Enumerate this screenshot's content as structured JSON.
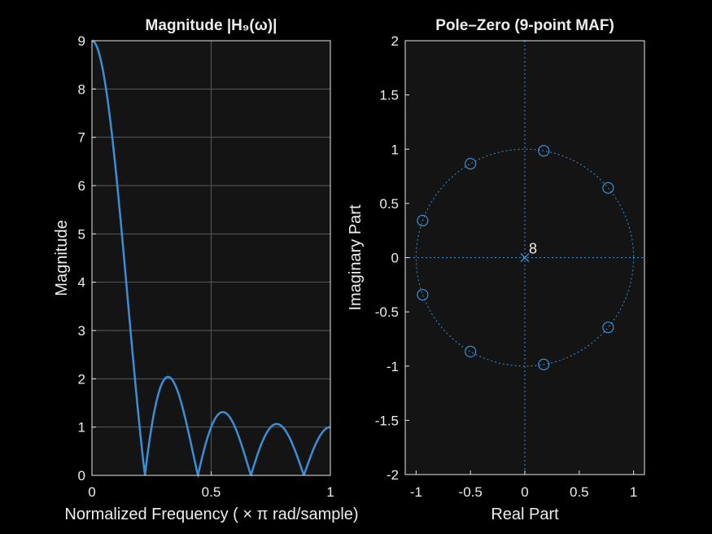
{
  "figure": {
    "background": "#000000",
    "axes_background": "#141414",
    "axis_color": "#e6e6e6",
    "grid_color": "#5a5a5a",
    "line_color": "#3a8fd8"
  },
  "chart_data": [
    {
      "type": "line",
      "title": "Magnitude  |H₉(ω)|",
      "xlabel": "Normalized  Frequency  ( × π  rad/sample)",
      "ylabel": "Magnitude",
      "xlim": [
        0,
        1
      ],
      "ylim": [
        0,
        9
      ],
      "xticks": [
        0,
        0.5,
        1
      ],
      "yticks": [
        0,
        1,
        2,
        3,
        4,
        5,
        6,
        7,
        8,
        9
      ],
      "grid": true,
      "series": [
        {
          "function": "abs(sin(9*pi*x/2) / sin(pi*x/2))",
          "x_range": [
            0,
            1
          ],
          "points": 400,
          "zeros_x": [
            0.2222,
            0.4444,
            0.6667,
            0.8889
          ],
          "peak_values": [
            9,
            2.04,
            1.31,
            1.06,
            1.0
          ]
        }
      ]
    },
    {
      "type": "scatter",
      "title": "Pole–Zero (9-point MAF)",
      "xlabel": "Real Part",
      "ylabel": "Imaginary Part",
      "xlim": [
        -1.1,
        1.1
      ],
      "ylim": [
        -2,
        2
      ],
      "xticks": [
        -1,
        -0.5,
        0,
        0.5,
        1
      ],
      "yticks": [
        -2,
        -1.5,
        -1,
        -0.5,
        0,
        0.5,
        1,
        1.5,
        2
      ],
      "grid": false,
      "unit_circle": true,
      "axes_lines": true,
      "zeros": [
        [
          0.766,
          0.643
        ],
        [
          0.174,
          0.985
        ],
        [
          -0.5,
          0.866
        ],
        [
          -0.94,
          0.342
        ],
        [
          -0.94,
          -0.342
        ],
        [
          -0.5,
          -0.866
        ],
        [
          0.174,
          -0.985
        ],
        [
          0.766,
          -0.643
        ]
      ],
      "poles": [
        [
          0,
          0
        ]
      ],
      "pole_multiplicity": "8"
    }
  ]
}
